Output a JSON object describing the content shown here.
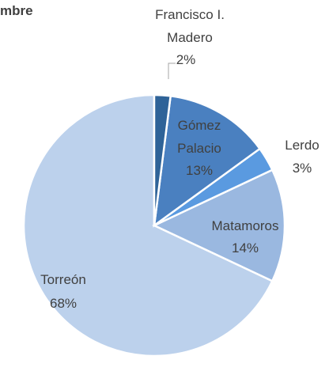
{
  "chart_data": {
    "type": "pie",
    "title": "mbre",
    "categories": [
      "Francisco I. Madero",
      "Gómez Palacio",
      "Lerdo",
      "Matamoros",
      "Torreón"
    ],
    "values": [
      2,
      13,
      3,
      14,
      68
    ],
    "value_labels": [
      "2%",
      "13%",
      "3%",
      "14%",
      "68%"
    ],
    "colors": [
      "#2f6398",
      "#4a80c0",
      "#5a9ae0",
      "#9ab8e0",
      "#bcd1ec"
    ]
  }
}
